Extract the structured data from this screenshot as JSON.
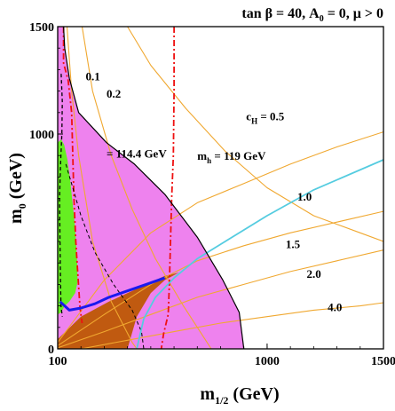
{
  "chart_data": {
    "type": "area",
    "title": "tan β = 40, A",
    "title_sub": "0",
    "title_tail": " = 0, μ > 0",
    "xlabel_main": "m",
    "xlabel_sub": "1/2",
    "xlabel_tail": " (GeV)",
    "ylabel_main": "m",
    "ylabel_sub": "0",
    "ylabel_tail": " (GeV)",
    "xlim": [
      100,
      1500
    ],
    "ylim": [
      0,
      1500
    ],
    "xticks": [
      {
        "value": 100,
        "label": "100"
      },
      {
        "value": 1000,
        "label": "1000"
      },
      {
        "value": 1500,
        "label": "1500"
      }
    ],
    "yticks": [
      {
        "value": 0,
        "label": "0"
      },
      {
        "value": 1000,
        "label": "1000"
      },
      {
        "value": 1500,
        "label": "1500"
      }
    ],
    "colors": {
      "pink": "#ee82ee",
      "green": "#66ee22",
      "brown": "#c05a10",
      "orange": "#f0a830",
      "red": "#ee1111",
      "blue": "#1a1aee",
      "cyan": "#55cce0",
      "navy": "#111166",
      "black": "#000000"
    },
    "regions": [
      {
        "name": "pink",
        "color": "pink",
        "points": [
          [
            100,
            1500
          ],
          [
            100,
            0
          ],
          [
            900,
            0
          ],
          [
            880,
            170
          ],
          [
            810,
            320
          ],
          [
            700,
            520
          ],
          [
            560,
            720
          ],
          [
            430,
            860
          ],
          [
            310,
            960
          ],
          [
            190,
            1100
          ],
          [
            150,
            1260
          ],
          [
            130,
            1400
          ],
          [
            125,
            1500
          ]
        ]
      },
      {
        "name": "green",
        "color": "green",
        "points": [
          [
            100,
            960
          ],
          [
            100,
            160
          ],
          [
            115,
            170
          ],
          [
            130,
            200
          ],
          [
            150,
            220
          ],
          [
            175,
            260
          ],
          [
            185,
            310
          ],
          [
            185,
            380
          ],
          [
            180,
            470
          ],
          [
            175,
            560
          ],
          [
            168,
            640
          ],
          [
            160,
            720
          ],
          [
            152,
            800
          ],
          [
            142,
            880
          ],
          [
            128,
            950
          ],
          [
            115,
            975
          ]
        ]
      },
      {
        "name": "brown",
        "color": "brown",
        "points": [
          [
            100,
            0
          ],
          [
            100,
            45
          ],
          [
            200,
            150
          ],
          [
            320,
            220
          ],
          [
            420,
            270
          ],
          [
            560,
            340
          ],
          [
            620,
            355
          ],
          [
            560,
            320
          ],
          [
            500,
            260
          ],
          [
            440,
            150
          ],
          [
            400,
            0
          ]
        ]
      },
      {
        "name": "pink-upper",
        "color": "pink",
        "points": [
          [
            100,
            1500
          ],
          [
            100,
            1430
          ],
          [
            112,
            1460
          ],
          [
            125,
            1500
          ]
        ]
      }
    ],
    "contours": [
      {
        "name": "c_H = 0.1",
        "color": "orange",
        "width": 1.1,
        "points": [
          [
            140,
            1500
          ],
          [
            160,
            1200
          ],
          [
            190,
            900
          ],
          [
            250,
            500
          ],
          [
            330,
            220
          ],
          [
            420,
            30
          ],
          [
            440,
            0
          ]
        ]
      },
      {
        "name": "c_H = 0.2",
        "color": "orange",
        "width": 1.1,
        "points": [
          [
            205,
            1500
          ],
          [
            250,
            1200
          ],
          [
            330,
            900
          ],
          [
            420,
            650
          ],
          [
            520,
            420
          ],
          [
            640,
            200
          ],
          [
            760,
            0
          ]
        ]
      },
      {
        "name": "c_H = 0.5",
        "color": "orange",
        "width": 1.1,
        "points": [
          [
            400,
            1500
          ],
          [
            500,
            1320
          ],
          [
            650,
            1120
          ],
          [
            820,
            920
          ],
          [
            1000,
            750
          ],
          [
            1200,
            620
          ],
          [
            1400,
            540
          ],
          [
            1500,
            500
          ]
        ]
      },
      {
        "name": "c_H = 1.0",
        "color": "orange",
        "width": 1.1,
        "points": [
          [
            100,
            30
          ],
          [
            300,
            320
          ],
          [
            500,
            540
          ],
          [
            700,
            680
          ],
          [
            900,
            770
          ],
          [
            1100,
            860
          ],
          [
            1300,
            940
          ],
          [
            1500,
            1010
          ]
        ]
      },
      {
        "name": "c_H = 1.5",
        "color": "orange",
        "width": 1.1,
        "points": [
          [
            100,
            15
          ],
          [
            300,
            160
          ],
          [
            500,
            300
          ],
          [
            700,
            410
          ],
          [
            900,
            480
          ],
          [
            1100,
            540
          ],
          [
            1300,
            590
          ],
          [
            1500,
            640
          ]
        ]
      },
      {
        "name": "c_H = 2.0",
        "color": "orange",
        "width": 1.1,
        "points": [
          [
            100,
            5
          ],
          [
            300,
            80
          ],
          [
            500,
            160
          ],
          [
            700,
            240
          ],
          [
            900,
            300
          ],
          [
            1100,
            360
          ],
          [
            1300,
            410
          ],
          [
            1500,
            460
          ]
        ]
      },
      {
        "name": "c_H = 4.0",
        "color": "orange",
        "width": 1.1,
        "points": [
          [
            200,
            0
          ],
          [
            400,
            40
          ],
          [
            600,
            80
          ],
          [
            800,
            120
          ],
          [
            1000,
            150
          ],
          [
            1200,
            180
          ],
          [
            1400,
            200
          ],
          [
            1500,
            215
          ]
        ]
      },
      {
        "name": "m_h = 119 GeV",
        "color": "red",
        "width": 1.8,
        "dash": "7,3,2,3",
        "points": [
          [
            600,
            1500
          ],
          [
            600,
            1200
          ],
          [
            597,
            900
          ],
          [
            590,
            700
          ],
          [
            585,
            500
          ],
          [
            580,
            300
          ],
          [
            575,
            160
          ],
          [
            555,
            70
          ],
          [
            545,
            0
          ]
        ]
      },
      {
        "name": "m_h = 114.4 GeV",
        "color": "red",
        "width": 1.8,
        "dash": "7,3,2,3",
        "points": [
          [
            125,
            1500
          ],
          [
            125,
            1330
          ],
          [
            145,
            1250
          ],
          [
            160,
            1100
          ],
          [
            165,
            900
          ],
          [
            170,
            700
          ],
          [
            178,
            500
          ],
          [
            188,
            320
          ],
          [
            196,
            190
          ],
          [
            205,
            120
          ]
        ]
      },
      {
        "name": "black-dashed-left",
        "color": "black",
        "width": 1.3,
        "dash": "4,3",
        "points": [
          [
            115,
            1280
          ],
          [
            120,
            1150
          ],
          [
            118,
            1000
          ],
          [
            112,
            850
          ],
          [
            108,
            700
          ],
          [
            110,
            500
          ],
          [
            112,
            330
          ],
          [
            114,
            200
          ],
          [
            120,
            150
          ]
        ]
      },
      {
        "name": "black-dashed-right",
        "color": "black",
        "width": 1.0,
        "dash": "4,3",
        "points": [
          [
            135,
            860
          ],
          [
            200,
            620
          ],
          [
            260,
            450
          ],
          [
            340,
            300
          ],
          [
            420,
            180
          ],
          [
            460,
            80
          ],
          [
            470,
            0
          ]
        ]
      },
      {
        "name": "blue-strip",
        "color": "blue",
        "width": 3.0,
        "points": [
          [
            110,
            220
          ],
          [
            150,
            180
          ],
          [
            200,
            190
          ],
          [
            260,
            210
          ],
          [
            320,
            240
          ],
          [
            400,
            270
          ],
          [
            480,
            300
          ],
          [
            560,
            330
          ]
        ]
      },
      {
        "name": "cyan-boundary",
        "color": "cyan",
        "width": 1.8,
        "points": [
          [
            440,
            0
          ],
          [
            470,
            140
          ],
          [
            520,
            240
          ],
          [
            600,
            330
          ],
          [
            700,
            420
          ],
          [
            820,
            500
          ],
          [
            1000,
            620
          ],
          [
            1200,
            740
          ],
          [
            1500,
            880
          ]
        ]
      },
      {
        "name": "pink-boundary",
        "color": "black",
        "width": 1.2,
        "points": [
          [
            900,
            0
          ],
          [
            880,
            170
          ],
          [
            810,
            320
          ],
          [
            700,
            520
          ],
          [
            560,
            720
          ],
          [
            430,
            860
          ],
          [
            310,
            960
          ],
          [
            190,
            1100
          ],
          [
            150,
            1260
          ],
          [
            130,
            1400
          ],
          [
            125,
            1500
          ]
        ]
      }
    ],
    "annotations": [
      {
        "text": "0.1",
        "x": 220,
        "y": 1250
      },
      {
        "text": "0.2",
        "x": 310,
        "y": 1170
      },
      {
        "text": "c",
        "sub": "H",
        "tail": " =  0.5",
        "x": 910,
        "y": 1065
      },
      {
        "text": "= 114.4 GeV",
        "x": 310,
        "y": 890
      },
      {
        "text": "m",
        "sub": "h",
        "tail": " = 119 GeV",
        "x": 700,
        "y": 880
      },
      {
        "text": "1.0",
        "x": 1130,
        "y": 690
      },
      {
        "text": "1.5",
        "x": 1080,
        "y": 470
      },
      {
        "text": "2.0",
        "x": 1170,
        "y": 330
      },
      {
        "text": "4.0",
        "x": 1260,
        "y": 175
      }
    ]
  }
}
